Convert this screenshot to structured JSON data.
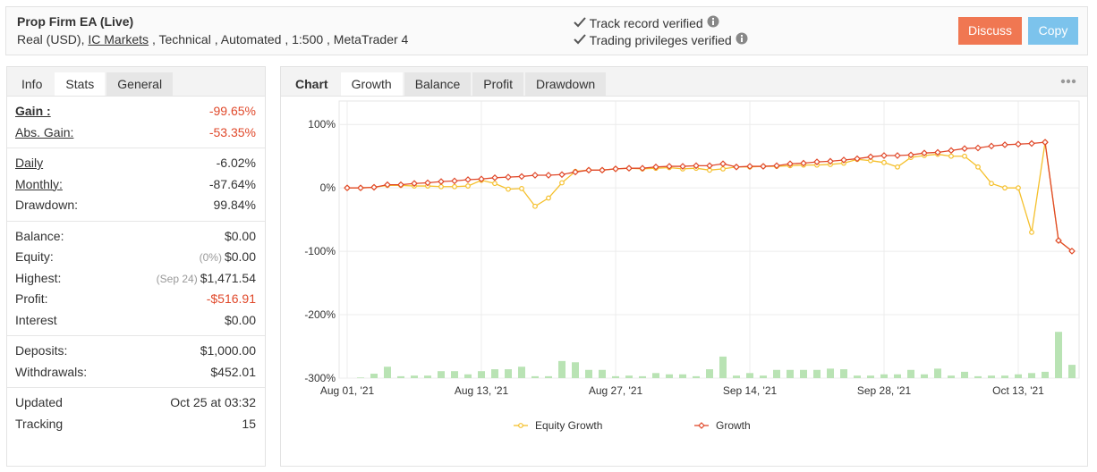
{
  "header": {
    "title": "Prop Firm EA (Live)",
    "details": [
      "Real (USD),",
      "IC Markets",
      ", Technical , Automated , 1:500 , MetaTrader 4"
    ],
    "verified": [
      "Track record verified",
      "Trading privileges verified"
    ],
    "buttons": [
      "Discuss",
      "Copy"
    ]
  },
  "stats_panel": {
    "tabs": [
      "Info",
      "Stats",
      "General"
    ],
    "sections": [
      [
        {
          "label": "Gain :",
          "value": "-99.65%"
        },
        {
          "label": "Abs. Gain:",
          "value": "-53.35%"
        }
      ],
      [
        {
          "label": "Daily",
          "value": "-6.02%"
        },
        {
          "label": "Monthly:",
          "value": "-87.64%"
        },
        {
          "label": "Drawdown:",
          "value": "99.84%"
        }
      ],
      [
        {
          "label": "Balance:",
          "value": "$0.00"
        },
        {
          "label": "Equity:",
          "note": "(0%)",
          "value": "$0.00"
        },
        {
          "label": "Highest:",
          "note": "(Sep 24)",
          "value": "$1,471.54"
        },
        {
          "label": "Profit:",
          "value": "-$516.91"
        },
        {
          "label": "Interest",
          "value": "$0.00"
        }
      ],
      [
        {
          "label": "Deposits:",
          "value": "$1,000.00"
        },
        {
          "label": "Withdrawals:",
          "value": "$452.01"
        }
      ],
      [
        {
          "label": "Updated",
          "value": "Oct 25 at 03:32"
        },
        {
          "label": "Tracking",
          "value": "15"
        }
      ]
    ]
  },
  "chart_panel": {
    "label": "Chart",
    "tabs": [
      "Growth",
      "Balance",
      "Profit",
      "Drawdown"
    ]
  },
  "chart_data": {
    "type": "line",
    "categories": [
      "Aug 01, '21",
      null,
      null,
      null,
      null,
      null,
      null,
      null,
      null,
      null,
      "Aug 13, '21",
      null,
      null,
      null,
      null,
      null,
      null,
      null,
      null,
      null,
      "Aug 27, '21",
      null,
      null,
      null,
      null,
      null,
      null,
      null,
      null,
      null,
      "Sep 14, '21",
      null,
      null,
      null,
      null,
      null,
      null,
      null,
      null,
      null,
      "Sep 28, '21",
      null,
      null,
      null,
      null,
      null,
      null,
      null,
      null,
      null,
      "Oct 13, '21",
      null,
      null,
      null,
      null
    ],
    "series": [
      {
        "name": "Equity Growth",
        "color": "#f5c02c",
        "marker": "circle",
        "values": [
          0,
          0,
          1,
          4,
          4,
          3,
          3,
          2,
          2,
          3,
          12,
          7,
          -2,
          -1,
          -29,
          -16,
          8,
          26,
          28,
          28,
          30,
          31,
          30,
          31,
          32,
          30,
          31,
          28,
          30,
          33,
          33,
          34,
          34,
          35,
          36,
          36,
          37,
          39,
          45,
          43,
          40,
          33,
          48,
          51,
          53,
          50,
          50,
          33,
          7,
          0,
          0,
          -70,
          72,
          -83,
          -99.65
        ]
      },
      {
        "name": "Growth",
        "color": "#e0492b",
        "marker": "diamond",
        "values": [
          0,
          0,
          1,
          5,
          5,
          7,
          8,
          10,
          11,
          13,
          14,
          16,
          17,
          18,
          20,
          20,
          21,
          25,
          28,
          28,
          30,
          31,
          31,
          33,
          34,
          34,
          35,
          35,
          38,
          33,
          34,
          34,
          35,
          38,
          39,
          41,
          42,
          44,
          46,
          49,
          51,
          51,
          52,
          55,
          56,
          59,
          62,
          63,
          66,
          68,
          69,
          70,
          72,
          -83,
          -99.65
        ]
      }
    ],
    "bars": {
      "color": "#b9e3b4",
      "values": [
        0,
        1,
        7,
        18,
        3,
        4,
        4,
        11,
        11,
        6,
        11,
        14,
        14,
        18,
        3,
        3,
        27,
        25,
        13,
        13,
        3,
        4,
        3,
        8,
        6,
        6,
        3,
        14,
        34,
        4,
        8,
        4,
        13,
        13,
        13,
        13,
        15,
        14,
        4,
        4,
        6,
        6,
        13,
        6,
        15,
        4,
        10,
        3,
        4,
        4,
        6,
        8,
        10,
        73,
        21
      ]
    },
    "ylim": [
      -300,
      137
    ],
    "yticks": [
      {
        "value": 100,
        "label": "100%"
      },
      {
        "value": 0,
        "label": "0%"
      },
      {
        "value": -100,
        "label": "-100%"
      },
      {
        "value": -200,
        "label": "-200%"
      },
      {
        "value": -300,
        "label": "-300%"
      }
    ],
    "grid": true
  }
}
